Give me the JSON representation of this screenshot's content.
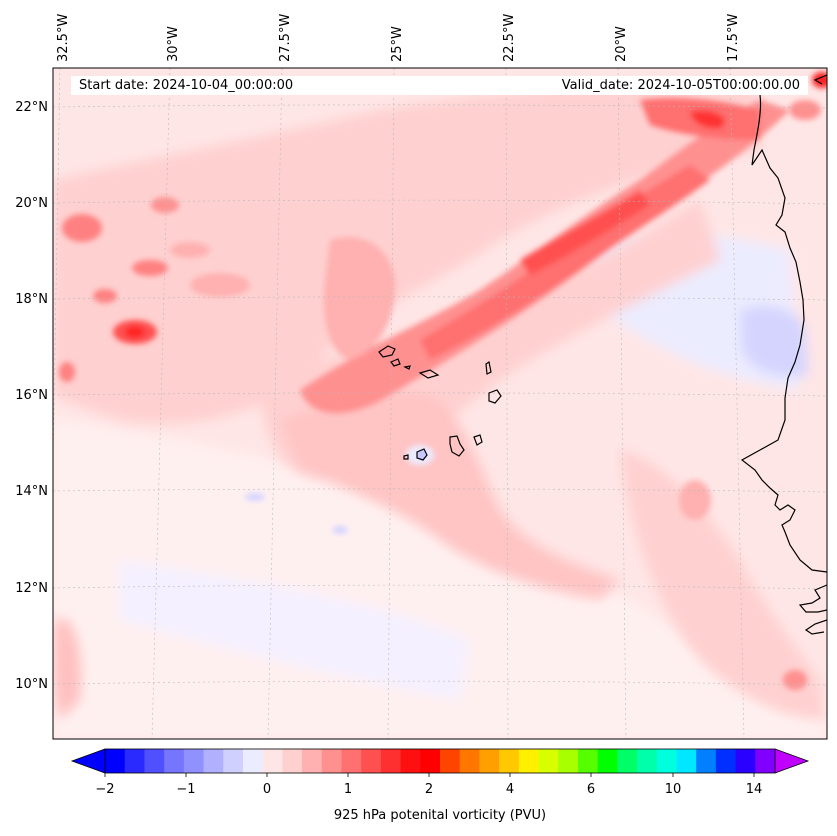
{
  "header": {
    "start_date": "Start date: 2024-10-04_00:00:00",
    "valid_date": "Valid_date: 2024-10-05T00:00:00.00"
  },
  "map": {
    "lon_labels": [
      "32.5°W",
      "30°W",
      "27.5°W",
      "25°W",
      "22.5°W",
      "20°W",
      "17.5°W"
    ],
    "lat_labels": [
      "22°N",
      "20°N",
      "18°N",
      "16°N",
      "14°N",
      "12°N",
      "10°N"
    ],
    "field": "925 hPa potential vorticity",
    "region": "Cape Verde Islands and West African coast"
  },
  "colorbar": {
    "title": "925 hPa potenital vorticity (PVU)",
    "tick_labels": [
      "−2",
      "−1",
      "0",
      "1",
      "2",
      "4",
      "6",
      "10",
      "14"
    ],
    "colors": [
      "#0000ff",
      "#2a2aff",
      "#5050ff",
      "#7575ff",
      "#9090ff",
      "#b0b0ff",
      "#d0d0ff",
      "#ececff",
      "#ffe6e6",
      "#ffd0d0",
      "#ffb0b0",
      "#ff9090",
      "#ff7070",
      "#ff5050",
      "#ff3030",
      "#ff1010",
      "#ff0000",
      "#ff4400",
      "#ff7700",
      "#ffa000",
      "#ffc800",
      "#fff000",
      "#d8ff00",
      "#a8ff00",
      "#55ff00",
      "#00ff00",
      "#00ff66",
      "#00ffaa",
      "#00ffdd",
      "#00e8ff",
      "#0080ff",
      "#0030ff",
      "#2a00ff",
      "#8000ff"
    ],
    "under_color": "#0000ff",
    "over_color": "#c000ff"
  }
}
